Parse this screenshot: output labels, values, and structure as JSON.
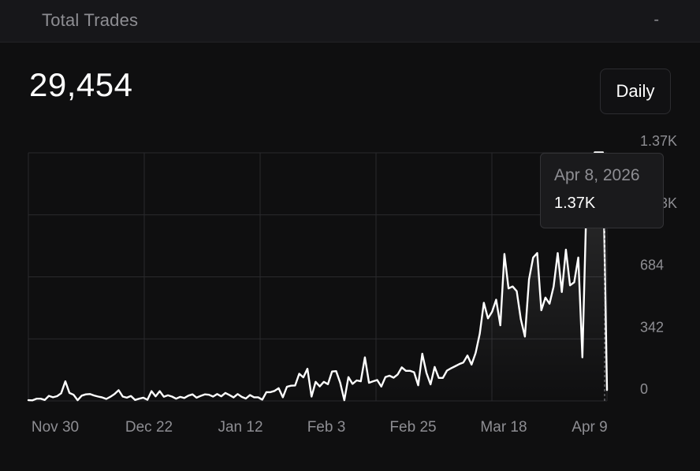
{
  "header": {
    "title": "Total Trades",
    "right_label": "-"
  },
  "summary": {
    "total": "29,454"
  },
  "controls": {
    "period_label": "Daily"
  },
  "tooltip": {
    "date": "Apr 8, 2026",
    "value": "1.37K"
  },
  "colors": {
    "background": "#0f0f10",
    "line": "#ffffff",
    "grid": "#2a2a2d",
    "muted_text": "#8e8e93"
  },
  "chart_data": {
    "type": "area",
    "x_tick_labels": [
      "Nov 30",
      "Dec 22",
      "Jan 12",
      "Feb 3",
      "Feb 25",
      "Mar 18",
      "Apr 9"
    ],
    "y_tick_labels": [
      "0",
      "342",
      "684",
      "1.03K",
      "1.37K"
    ],
    "ylim": [
      0,
      1368
    ],
    "grid": true,
    "y_axis_side": "right",
    "series": [
      {
        "values": [
          4,
          3,
          12,
          12,
          5,
          28,
          20,
          26,
          42,
          108,
          44,
          34,
          4,
          29,
          36,
          38,
          30,
          24,
          19,
          11,
          23,
          38,
          59,
          24,
          18,
          27,
          5,
          12,
          18,
          6,
          54,
          25,
          54,
          23,
          31,
          24,
          12,
          22,
          16,
          29,
          36,
          18,
          28,
          36,
          34,
          24,
          38,
          25,
          44,
          32,
          19,
          38,
          22,
          13,
          32,
          20,
          20,
          7,
          48,
          48,
          55,
          70,
          20,
          78,
          84,
          85,
          150,
          130,
          177,
          24,
          105,
          80,
          105,
          92,
          162,
          164,
          100,
          4,
          131,
          94,
          113,
          108,
          240,
          100,
          108,
          115,
          79,
          131,
          139,
          128,
          146,
          185,
          166,
          166,
          158,
          86,
          260,
          154,
          91,
          187,
          127,
          127,
          167,
          180,
          191,
          203,
          212,
          250,
          200,
          265,
          370,
          541,
          455,
          491,
          558,
          417,
          810,
          620,
          631,
          605,
          450,
          355,
          670,
          790,
          815,
          500,
          570,
          536,
          630,
          815,
          600,
          834,
          637,
          654,
          791,
          240,
          1100,
          1280,
          1370,
          1370,
          1370,
          60
        ]
      }
    ],
    "highlight": {
      "label": "Apr 8, 2026",
      "value": 1370
    }
  }
}
